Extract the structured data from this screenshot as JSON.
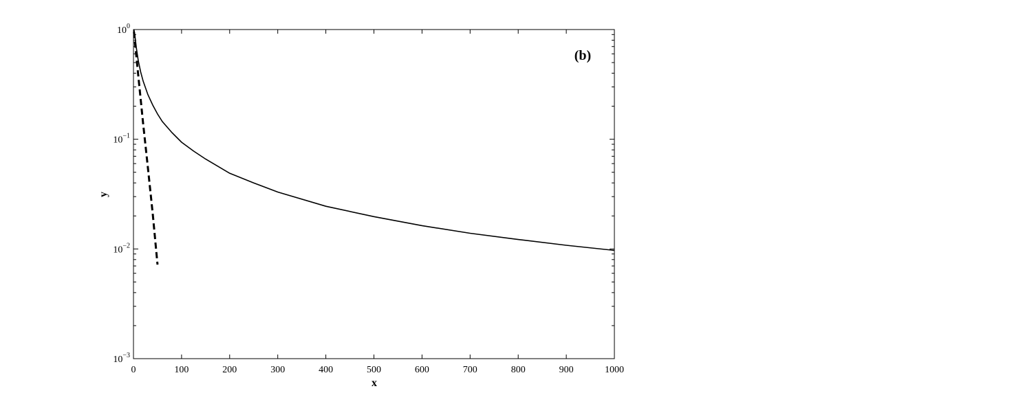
{
  "chart_data": {
    "type": "line",
    "panel_label": "(b)",
    "xlabel": "x",
    "ylabel": "y",
    "xlim": [
      0,
      1000
    ],
    "ylim": [
      0.001,
      1
    ],
    "y_scale": "log",
    "grid": false,
    "x_ticks": [
      0,
      100,
      200,
      300,
      400,
      500,
      600,
      700,
      800,
      900,
      1000
    ],
    "x_tick_labels": [
      "0",
      "100",
      "200",
      "300",
      "400",
      "500",
      "600",
      "700",
      "800",
      "900",
      "1000"
    ],
    "y_ticks": [
      {
        "value": 1,
        "base": "10",
        "exp": "0"
      },
      {
        "value": 0.1,
        "base": "10",
        "exp": "−1"
      },
      {
        "value": 0.01,
        "base": "10",
        "exp": "−2"
      },
      {
        "value": 0.001,
        "base": "10",
        "exp": "−3"
      }
    ],
    "series": [
      {
        "style": "solid",
        "color": "#000000",
        "x": [
          1,
          3,
          6,
          10,
          15,
          20,
          30,
          40,
          50,
          60,
          80,
          100,
          125,
          150,
          200,
          250,
          300,
          400,
          500,
          600,
          700,
          800,
          900,
          1000
        ],
        "y": [
          1.0,
          0.88,
          0.68,
          0.52,
          0.41,
          0.34,
          0.255,
          0.205,
          0.17,
          0.145,
          0.115,
          0.094,
          0.078,
          0.066,
          0.049,
          0.04,
          0.033,
          0.0245,
          0.0197,
          0.0163,
          0.0139,
          0.0122,
          0.0108,
          0.0097
        ]
      },
      {
        "style": "dashed",
        "color": "#000000",
        "x": [
          1,
          10,
          20,
          30,
          40,
          50
        ],
        "y": [
          0.95,
          0.38,
          0.14,
          0.055,
          0.021,
          0.0072
        ]
      }
    ]
  }
}
